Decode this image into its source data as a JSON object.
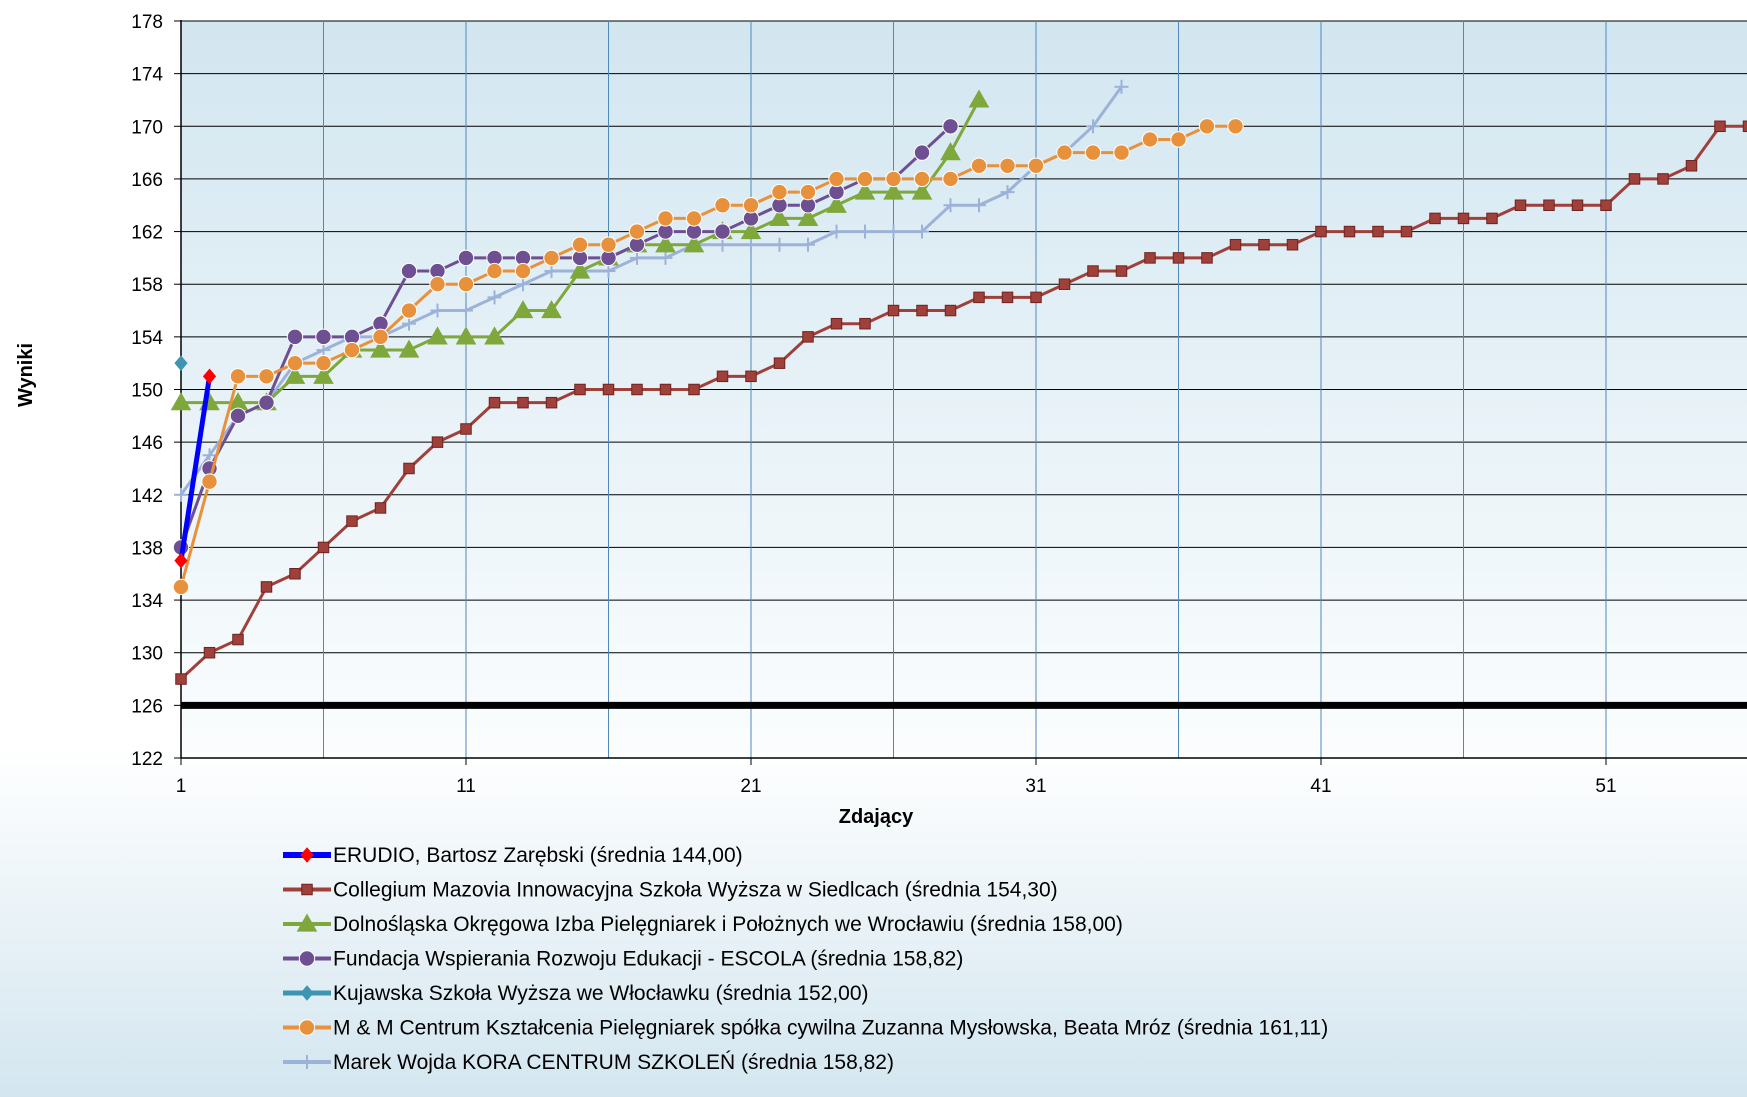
{
  "chart_data": {
    "type": "line",
    "xlabel": "Zdający",
    "ylabel": "Wyniki",
    "xlim": [
      1,
      56
    ],
    "ylim": [
      122,
      178
    ],
    "x_ticks": [
      1,
      11,
      21,
      31,
      41,
      51
    ],
    "y_ticks": [
      122,
      126,
      130,
      134,
      138,
      142,
      146,
      150,
      154,
      158,
      162,
      166,
      170,
      174,
      178
    ],
    "threshold": 126,
    "grid": true,
    "legend_position": "bottom",
    "series": [
      {
        "name": "ERUDIO, Bartosz Zarębski (średnia 144,00)",
        "color": "#0000ff",
        "marker_color": "#ff0000",
        "marker": "diamond",
        "line_width": 5,
        "values": [
          137,
          151
        ]
      },
      {
        "name": "Collegium Mazovia Innowacyjna Szkoła Wyższa w Siedlcach (średnia 154,30)",
        "color": "#a0403a",
        "marker": "square",
        "line_width": 3,
        "values": [
          128,
          130,
          131,
          135,
          136,
          138,
          140,
          141,
          144,
          146,
          147,
          149,
          149,
          149,
          150,
          150,
          150,
          150,
          150,
          151,
          151,
          152,
          154,
          155,
          155,
          156,
          156,
          156,
          157,
          157,
          157,
          158,
          159,
          159,
          160,
          160,
          160,
          161,
          161,
          161,
          162,
          162,
          162,
          162,
          163,
          163,
          163,
          164,
          164,
          164,
          164,
          166,
          166,
          167,
          170,
          170
        ]
      },
      {
        "name": "Dolnośląska Okręgowa Izba Pielęgniarek i Położnych we Wrocławiu (średnia 158,00)",
        "color": "#7ea73c",
        "marker": "triangle",
        "line_width": 3,
        "values": [
          149,
          149,
          149,
          149,
          151,
          151,
          153,
          153,
          153,
          154,
          154,
          154,
          156,
          156,
          159,
          160,
          161,
          161,
          161,
          162,
          162,
          163,
          163,
          164,
          165,
          165,
          165,
          168,
          172
        ]
      },
      {
        "name": "Fundacja Wspierania Rozwoju Edukacji - ESCOLA (średnia 158,82)",
        "color": "#6e4f92",
        "marker": "circle",
        "line_width": 3,
        "values": [
          138,
          144,
          148,
          149,
          154,
          154,
          154,
          155,
          159,
          159,
          160,
          160,
          160,
          160,
          160,
          160,
          161,
          162,
          162,
          162,
          163,
          164,
          164,
          165,
          166,
          166,
          168,
          170
        ]
      },
      {
        "name": "Kujawska Szkoła Wyższa we Włocławku (średnia 152,00)",
        "color": "#3d95b1",
        "marker": "diamond",
        "line_width": 4,
        "values": [
          152
        ]
      },
      {
        "name": "M & M Centrum Kształcenia Pielęgniarek spółka cywilna Zuzanna Mysłowska, Beata Mróz (średnia 161,11)",
        "color": "#e8913c",
        "marker": "circle",
        "line_width": 3,
        "values": [
          135,
          143,
          151,
          151,
          152,
          152,
          153,
          154,
          156,
          158,
          158,
          159,
          159,
          160,
          161,
          161,
          162,
          163,
          163,
          164,
          164,
          165,
          165,
          166,
          166,
          166,
          166,
          166,
          167,
          167,
          167,
          168,
          168,
          168,
          169,
          169,
          170,
          170
        ]
      },
      {
        "name": "Marek Wojda KORA CENTRUM SZKOLEŃ (średnia 158,82)",
        "color": "#9db2d9",
        "marker": "plus",
        "line_width": 3,
        "values": [
          142,
          145,
          148,
          149,
          152,
          153,
          154,
          154,
          155,
          156,
          156,
          157,
          158,
          159,
          159,
          159,
          160,
          160,
          161,
          161,
          161,
          161,
          161,
          162,
          162,
          162,
          162,
          164,
          164,
          165,
          167,
          168,
          170,
          173
        ]
      }
    ]
  }
}
